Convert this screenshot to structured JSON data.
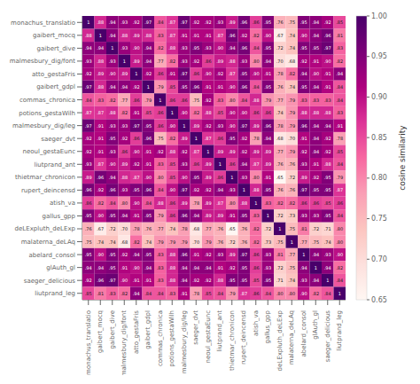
{
  "chart_data": {
    "type": "heatmap",
    "categories": [
      "monachus_translatio",
      "gaibert_mocq",
      "gaibert_dive",
      "malmesbury_dig/font",
      "atto_gestaFris",
      "gaibert_gdpl",
      "commas_chronica",
      "potions_gestaWilh",
      "malmesbury_dig/leg",
      "saeger_dvt",
      "neoul_gestaEunc",
      "liutprand_ant",
      "thietmar_chronicon",
      "rupert_deincensd",
      "atish_va",
      "gallus_gpp",
      "deLExpluth_deLExp",
      "malaterna_deLAq",
      "abelard_consol",
      "glAuth_gl",
      "saeger_delicious",
      "liutprand_leg"
    ],
    "values": [
      [
        1.0,
        0.88,
        0.94,
        0.93,
        0.92,
        0.97,
        0.84,
        0.87,
        0.97,
        0.92,
        0.92,
        0.93,
        0.89,
        0.96,
        0.86,
        0.95,
        0.76,
        0.75,
        0.95,
        0.94,
        0.92,
        0.85
      ],
      [
        0.88,
        1.0,
        0.94,
        0.88,
        0.89,
        0.88,
        0.83,
        0.87,
        0.91,
        0.91,
        0.91,
        0.87,
        0.96,
        0.92,
        0.82,
        0.9,
        0.67,
        0.74,
        0.9,
        0.94,
        0.96,
        0.81
      ],
      [
        0.94,
        0.94,
        1.0,
        0.93,
        0.9,
        0.94,
        0.82,
        0.88,
        0.93,
        0.95,
        0.93,
        0.9,
        0.94,
        0.96,
        0.84,
        0.95,
        0.72,
        0.74,
        0.95,
        0.95,
        0.97,
        0.83
      ],
      [
        0.93,
        0.88,
        0.93,
        1.0,
        0.89,
        0.94,
        0.77,
        0.82,
        0.93,
        0.92,
        0.86,
        0.89,
        0.88,
        0.93,
        0.8,
        0.94,
        0.7,
        0.68,
        0.92,
        0.91,
        0.9,
        0.82
      ],
      [
        0.92,
        0.89,
        0.9,
        0.89,
        1.0,
        0.92,
        0.86,
        0.91,
        0.97,
        0.86,
        0.9,
        0.92,
        0.87,
        0.95,
        0.9,
        0.91,
        0.78,
        0.82,
        0.94,
        0.9,
        0.91,
        0.94
      ],
      [
        0.97,
        0.88,
        0.94,
        0.94,
        0.92,
        1.0,
        0.79,
        0.85,
        0.95,
        0.96,
        0.91,
        0.91,
        0.9,
        0.96,
        0.84,
        0.95,
        0.76,
        0.74,
        0.95,
        0.94,
        0.91,
        0.84
      ],
      [
        0.84,
        0.83,
        0.82,
        0.77,
        0.86,
        0.79,
        1.0,
        0.86,
        0.86,
        0.75,
        0.92,
        0.83,
        0.8,
        0.84,
        0.88,
        0.79,
        0.77,
        0.79,
        0.83,
        0.83,
        0.83,
        0.84
      ],
      [
        0.87,
        0.87,
        0.88,
        0.82,
        0.91,
        0.85,
        0.86,
        1.0,
        0.9,
        0.82,
        0.88,
        0.85,
        0.9,
        0.9,
        0.86,
        0.86,
        0.74,
        0.79,
        0.88,
        0.88,
        0.88,
        0.83
      ],
      [
        0.97,
        0.91,
        0.93,
        0.93,
        0.97,
        0.95,
        0.86,
        0.9,
        1.0,
        0.89,
        0.92,
        0.93,
        0.9,
        0.97,
        0.89,
        0.96,
        0.78,
        0.79,
        0.96,
        0.94,
        0.94,
        0.91
      ],
      [
        0.92,
        0.91,
        0.95,
        0.92,
        0.86,
        0.96,
        0.75,
        0.82,
        0.89,
        1.0,
        0.87,
        0.86,
        0.95,
        0.92,
        0.78,
        0.94,
        0.68,
        0.7,
        0.91,
        0.94,
        0.92,
        0.78
      ],
      [
        0.92,
        0.91,
        0.93,
        0.86,
        0.9,
        0.91,
        0.92,
        0.88,
        0.92,
        0.87,
        1.0,
        0.89,
        0.89,
        0.92,
        0.89,
        0.89,
        0.77,
        0.79,
        0.92,
        0.94,
        0.92,
        0.85
      ],
      [
        0.93,
        0.87,
        0.9,
        0.89,
        0.92,
        0.91,
        0.83,
        0.85,
        0.93,
        0.86,
        0.89,
        1.0,
        0.86,
        0.94,
        0.87,
        0.89,
        0.76,
        0.76,
        0.93,
        0.91,
        0.88,
        0.84
      ],
      [
        0.89,
        0.96,
        0.94,
        0.88,
        0.87,
        0.9,
        0.8,
        0.85,
        0.9,
        0.95,
        0.89,
        0.86,
        1.0,
        0.93,
        0.8,
        0.91,
        0.65,
        0.72,
        0.89,
        0.92,
        0.95,
        0.79
      ],
      [
        0.96,
        0.92,
        0.96,
        0.93,
        0.95,
        0.96,
        0.84,
        0.9,
        0.97,
        0.92,
        0.92,
        0.94,
        0.93,
        1.0,
        0.88,
        0.95,
        0.76,
        0.76,
        0.97,
        0.95,
        0.95,
        0.87
      ],
      [
        0.86,
        0.82,
        0.84,
        0.8,
        0.9,
        0.84,
        0.88,
        0.86,
        0.89,
        0.78,
        0.89,
        0.87,
        0.8,
        0.88,
        1.0,
        0.83,
        0.82,
        0.82,
        0.86,
        0.86,
        0.85,
        0.86
      ],
      [
        0.95,
        0.9,
        0.95,
        0.94,
        0.91,
        0.95,
        0.79,
        0.86,
        0.96,
        0.94,
        0.89,
        0.89,
        0.91,
        0.95,
        0.83,
        1.0,
        0.72,
        0.73,
        0.93,
        0.93,
        0.95,
        0.84
      ],
      [
        0.76,
        0.67,
        0.72,
        0.7,
        0.78,
        0.76,
        0.77,
        0.74,
        0.78,
        0.68,
        0.77,
        0.76,
        0.65,
        0.76,
        0.82,
        0.72,
        1.0,
        0.75,
        0.81,
        0.72,
        0.71,
        0.8
      ],
      [
        0.75,
        0.74,
        0.74,
        0.68,
        0.82,
        0.74,
        0.79,
        0.79,
        0.79,
        0.7,
        0.79,
        0.76,
        0.72,
        0.76,
        0.82,
        0.73,
        0.75,
        1.0,
        0.77,
        0.75,
        0.74,
        0.8
      ],
      [
        0.95,
        0.9,
        0.95,
        0.92,
        0.94,
        0.95,
        0.83,
        0.88,
        0.96,
        0.91,
        0.92,
        0.93,
        0.89,
        0.97,
        0.86,
        0.93,
        0.81,
        0.77,
        1.0,
        0.94,
        0.93,
        0.9
      ],
      [
        0.94,
        0.94,
        0.95,
        0.91,
        0.9,
        0.94,
        0.83,
        0.88,
        0.94,
        0.94,
        0.94,
        0.91,
        0.92,
        0.95,
        0.86,
        0.93,
        0.72,
        0.75,
        0.94,
        1.0,
        0.94,
        0.82
      ],
      [
        0.92,
        0.96,
        0.97,
        0.9,
        0.91,
        0.91,
        0.83,
        0.88,
        0.94,
        0.92,
        0.92,
        0.88,
        0.95,
        0.95,
        0.85,
        0.95,
        0.71,
        0.74,
        0.93,
        0.94,
        1.0,
        0.84
      ],
      [
        0.85,
        0.81,
        0.83,
        0.82,
        0.94,
        0.84,
        0.84,
        0.83,
        0.91,
        0.78,
        0.85,
        0.84,
        0.79,
        0.87,
        0.86,
        0.84,
        0.8,
        0.8,
        0.9,
        0.82,
        0.84,
        1.0
      ]
    ],
    "value_labels": [
      [
        "1",
        ".88",
        ".94",
        ".93",
        ".92",
        ".97",
        ".84",
        ".87",
        ".97",
        ".92",
        ".92",
        ".93",
        ".89",
        ".96",
        ".86",
        ".95",
        ".76",
        ".75",
        ".95",
        ".94",
        ".92",
        ".85"
      ],
      [
        ".88",
        "1",
        ".94",
        ".88",
        ".89",
        ".88",
        ".83",
        ".87",
        ".91",
        ".91",
        ".91",
        ".87",
        ".96",
        ".92",
        ".82",
        ".90",
        ".67",
        ".74",
        ".90",
        ".94",
        ".96",
        ".81"
      ],
      [
        ".94",
        ".94",
        "1",
        ".93",
        ".90",
        ".94",
        ".82",
        ".88",
        ".93",
        ".95",
        ".93",
        ".90",
        ".94",
        ".96",
        ".84",
        ".95",
        ".72",
        ".74",
        ".95",
        ".95",
        ".97",
        ".83"
      ],
      [
        ".93",
        ".88",
        ".93",
        "1",
        ".89",
        ".94",
        ".77",
        ".82",
        ".93",
        ".92",
        ".86",
        ".89",
        ".88",
        ".93",
        ".80",
        ".94",
        ".70",
        ".68",
        ".92",
        ".91",
        ".90",
        ".82"
      ],
      [
        ".92",
        ".89",
        ".90",
        ".89",
        "1",
        ".92",
        ".86",
        ".91",
        ".97",
        ".86",
        ".90",
        ".92",
        ".87",
        ".95",
        ".90",
        ".91",
        ".78",
        ".82",
        ".94",
        ".90",
        ".91",
        ".94"
      ],
      [
        ".97",
        ".88",
        ".94",
        ".94",
        ".92",
        "1",
        ".79",
        ".85",
        ".95",
        ".96",
        ".91",
        ".91",
        ".90",
        ".96",
        ".84",
        ".95",
        ".76",
        ".74",
        ".95",
        ".94",
        ".91",
        ".84"
      ],
      [
        ".84",
        ".83",
        ".82",
        ".77",
        ".86",
        ".79",
        "1",
        ".86",
        ".86",
        ".75",
        ".92",
        ".83",
        ".80",
        ".84",
        ".88",
        ".79",
        ".77",
        ".79",
        ".83",
        ".83",
        ".83",
        ".84"
      ],
      [
        ".87",
        ".87",
        ".88",
        ".82",
        ".91",
        ".85",
        ".86",
        "1",
        ".90",
        ".82",
        ".88",
        ".85",
        ".90",
        ".90",
        ".86",
        ".86",
        ".74",
        ".79",
        ".88",
        ".88",
        ".88",
        ".83"
      ],
      [
        ".97",
        ".91",
        ".93",
        ".93",
        ".97",
        ".95",
        ".86",
        ".90",
        "1",
        ".89",
        ".92",
        ".93",
        ".90",
        ".97",
        ".89",
        ".96",
        ".78",
        ".79",
        ".96",
        ".94",
        ".94",
        ".91"
      ],
      [
        ".92",
        ".91",
        ".95",
        ".92",
        ".86",
        ".96",
        ".75",
        ".82",
        ".89",
        "1",
        ".87",
        ".86",
        ".95",
        ".92",
        ".78",
        ".94",
        ".68",
        ".70",
        ".91",
        ".94",
        ".92",
        ".78"
      ],
      [
        ".92",
        ".91",
        ".93",
        ".86",
        ".90",
        ".91",
        ".92",
        ".88",
        ".92",
        ".87",
        "1",
        ".89",
        ".89",
        ".92",
        ".89",
        ".89",
        ".77",
        ".79",
        ".92",
        ".94",
        ".92",
        ".85"
      ],
      [
        ".93",
        ".87",
        ".90",
        ".89",
        ".92",
        ".91",
        ".83",
        ".85",
        ".93",
        ".86",
        ".89",
        "1",
        ".86",
        ".94",
        ".87",
        ".89",
        ".76",
        ".76",
        ".93",
        ".91",
        ".88",
        ".84"
      ],
      [
        ".89",
        ".96",
        ".94",
        ".88",
        ".87",
        ".90",
        ".80",
        ".85",
        ".90",
        ".95",
        ".89",
        ".86",
        "1",
        ".93",
        ".80",
        ".91",
        ".65",
        ".72",
        ".89",
        ".92",
        ".95",
        ".79"
      ],
      [
        ".96",
        ".92",
        ".96",
        ".93",
        ".95",
        ".96",
        ".84",
        ".90",
        ".97",
        ".92",
        ".92",
        ".94",
        ".93",
        "1",
        ".88",
        ".95",
        ".76",
        ".76",
        ".97",
        ".95",
        ".95",
        ".87"
      ],
      [
        ".86",
        ".82",
        ".84",
        ".80",
        ".90",
        ".84",
        ".88",
        ".86",
        ".89",
        ".78",
        ".89",
        ".87",
        ".80",
        ".88",
        "1",
        ".83",
        ".82",
        ".82",
        ".86",
        ".86",
        ".85",
        ".86"
      ],
      [
        ".95",
        ".90",
        ".95",
        ".94",
        ".91",
        ".95",
        ".79",
        ".86",
        ".96",
        ".94",
        ".89",
        ".89",
        ".91",
        ".95",
        ".83",
        "1",
        ".72",
        ".73",
        ".93",
        ".93",
        ".95",
        ".84"
      ],
      [
        ".76",
        ".67",
        ".72",
        ".70",
        ".78",
        ".76",
        ".77",
        ".74",
        ".78",
        ".68",
        ".77",
        ".76",
        ".65",
        ".76",
        ".82",
        ".72",
        "1",
        ".75",
        ".81",
        ".72",
        ".71",
        ".80"
      ],
      [
        ".75",
        ".74",
        ".74",
        ".68",
        ".82",
        ".74",
        ".79",
        ".79",
        ".79",
        ".70",
        ".79",
        ".76",
        ".72",
        ".76",
        ".82",
        ".73",
        ".75",
        "1",
        ".77",
        ".75",
        ".74",
        ".80"
      ],
      [
        ".95",
        ".90",
        ".95",
        ".92",
        ".94",
        ".95",
        ".83",
        ".88",
        ".96",
        ".91",
        ".92",
        ".93",
        ".89",
        ".97",
        ".86",
        ".93",
        ".81",
        ".77",
        "1",
        ".94",
        ".93",
        ".90"
      ],
      [
        ".94",
        ".94",
        ".95",
        ".91",
        ".90",
        ".94",
        ".83",
        ".88",
        ".94",
        ".94",
        ".94",
        ".91",
        ".92",
        ".95",
        ".86",
        ".93",
        ".72",
        ".75",
        ".94",
        "1",
        ".94",
        ".82"
      ],
      [
        ".92",
        ".96",
        ".97",
        ".90",
        ".91",
        ".91",
        ".83",
        ".88",
        ".94",
        ".92",
        ".92",
        ".88",
        ".95",
        ".95",
        ".85",
        ".95",
        ".71",
        ".74",
        ".93",
        ".94",
        "1",
        ".84"
      ],
      [
        ".85",
        ".81",
        ".83",
        ".82",
        ".94",
        ".84",
        ".84",
        ".83",
        ".91",
        ".78",
        ".85",
        ".84",
        ".79",
        ".87",
        ".86",
        ".84",
        ".80",
        ".80",
        ".90",
        ".82",
        ".84",
        "1"
      ]
    ],
    "data_labels": true,
    "grid": false,
    "color": "RdPu",
    "colorbar_label": "cosine similarity",
    "colorbar_range": [
      0.65,
      1.0
    ],
    "colorbar_ticks": [
      0.65,
      {
        "value": 0.7,
        "label": "0.70"
      },
      0.75,
      {
        "value": 0.8,
        "label": "0.80"
      },
      0.85,
      {
        "value": 0.9,
        "label": "0.90"
      },
      0.95,
      {
        "value": 1.0,
        "label": "1.00"
      }
    ]
  }
}
